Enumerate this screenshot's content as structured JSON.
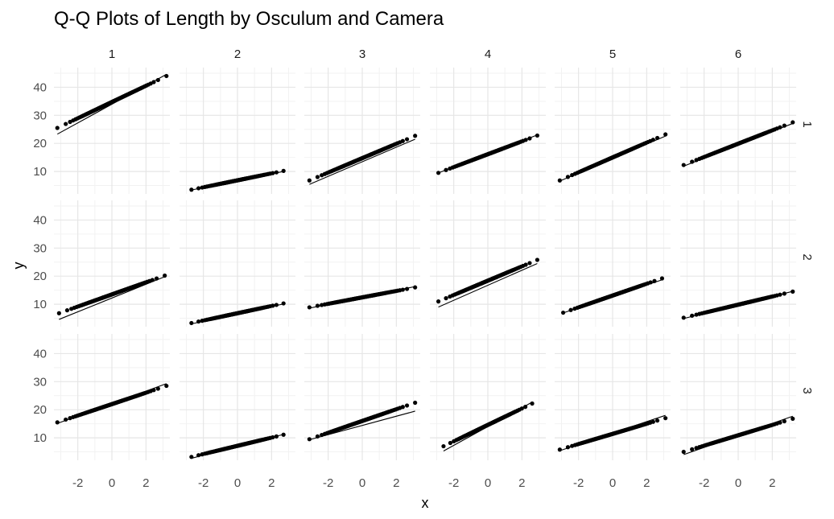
{
  "chart_data": {
    "type": "scatter",
    "title": "Q-Q Plots of Length by Osculum and Camera",
    "xlabel": "x",
    "ylabel": "y",
    "col_labels": [
      "1",
      "2",
      "3",
      "4",
      "5",
      "6"
    ],
    "row_labels": [
      "1",
      "2",
      "3"
    ],
    "x_ticks": [
      -2,
      0,
      2
    ],
    "x_tick_labels": [
      "-2",
      "0",
      "2"
    ],
    "y_ticks": [
      10,
      20,
      30,
      40
    ],
    "y_tick_labels": [
      "10",
      "20",
      "30",
      "40"
    ],
    "xlim": [
      -3.4,
      3.4
    ],
    "ylim": [
      2,
      47
    ],
    "grid": true,
    "facet_grid": true,
    "panels": [
      {
        "row": 1,
        "col": 1,
        "x_range": [
          -3.2,
          3.2
        ],
        "y_range": [
          25.5,
          44
        ],
        "line": [
          [
            -3.2,
            23.3
          ],
          [
            3.2,
            44.6
          ]
        ]
      },
      {
        "row": 1,
        "col": 2,
        "x_range": [
          -2.7,
          2.7
        ],
        "y_range": [
          3.5,
          10.2
        ],
        "line": [
          [
            -2.7,
            3.4
          ],
          [
            2.7,
            10.0
          ]
        ]
      },
      {
        "row": 1,
        "col": 3,
        "x_range": [
          -3.1,
          3.1
        ],
        "y_range": [
          6.8,
          22.7
        ],
        "line": [
          [
            -3.1,
            5.4
          ],
          [
            3.1,
            21.5
          ]
        ]
      },
      {
        "row": 1,
        "col": 4,
        "x_range": [
          -2.9,
          2.9
        ],
        "y_range": [
          9.5,
          22.8
        ],
        "line": [
          [
            -2.9,
            9.5
          ],
          [
            2.9,
            23.0
          ]
        ]
      },
      {
        "row": 1,
        "col": 5,
        "x_range": [
          -3.1,
          3.1
        ],
        "y_range": [
          6.8,
          23.2
        ],
        "line": [
          [
            -3.1,
            6.6
          ],
          [
            3.1,
            22.6
          ]
        ]
      },
      {
        "row": 1,
        "col": 6,
        "x_range": [
          -3.2,
          3.2
        ],
        "y_range": [
          12.3,
          27.5
        ],
        "line": [
          [
            -3.2,
            11.9
          ],
          [
            3.2,
            27.1
          ]
        ]
      },
      {
        "row": 2,
        "col": 1,
        "x_range": [
          -3.1,
          3.1
        ],
        "y_range": [
          6.8,
          20.2
        ],
        "line": [
          [
            -3.1,
            4.6
          ],
          [
            3.1,
            19.8
          ]
        ]
      },
      {
        "row": 2,
        "col": 2,
        "x_range": [
          -2.7,
          2.7
        ],
        "y_range": [
          3.3,
          10.3
        ],
        "line": [
          [
            -2.7,
            3.0
          ],
          [
            2.7,
            10.1
          ]
        ]
      },
      {
        "row": 2,
        "col": 3,
        "x_range": [
          -3.1,
          3.1
        ],
        "y_range": [
          8.9,
          16.0
        ],
        "line": [
          [
            -3.1,
            8.6
          ],
          [
            3.1,
            16.3
          ]
        ]
      },
      {
        "row": 2,
        "col": 4,
        "x_range": [
          -2.9,
          2.9
        ],
        "y_range": [
          11.0,
          25.8
        ],
        "line": [
          [
            -2.9,
            9.0
          ],
          [
            2.9,
            24.5
          ]
        ]
      },
      {
        "row": 2,
        "col": 5,
        "x_range": [
          -2.9,
          2.9
        ],
        "y_range": [
          7.0,
          19.2
        ],
        "line": [
          [
            -2.9,
            6.9
          ],
          [
            2.9,
            18.7
          ]
        ]
      },
      {
        "row": 2,
        "col": 6,
        "x_range": [
          -3.2,
          3.2
        ],
        "y_range": [
          5.2,
          14.5
        ],
        "line": [
          [
            -3.2,
            4.9
          ],
          [
            3.2,
            14.6
          ]
        ]
      },
      {
        "row": 3,
        "col": 1,
        "x_range": [
          -3.2,
          3.2
        ],
        "y_range": [
          15.5,
          28.5
        ],
        "line": [
          [
            -3.2,
            15.1
          ],
          [
            3.2,
            29.3
          ]
        ]
      },
      {
        "row": 3,
        "col": 2,
        "x_range": [
          -2.7,
          2.7
        ],
        "y_range": [
          3.2,
          11.1
        ],
        "line": [
          [
            -2.7,
            2.7
          ],
          [
            2.7,
            11.2
          ]
        ]
      },
      {
        "row": 3,
        "col": 3,
        "x_range": [
          -3.1,
          3.1
        ],
        "y_range": [
          9.5,
          22.5
        ],
        "line": [
          [
            -3.1,
            9.3
          ],
          [
            3.1,
            19.5
          ]
        ]
      },
      {
        "row": 3,
        "col": 4,
        "x_range": [
          -2.6,
          2.6
        ],
        "y_range": [
          7.0,
          22.2
        ],
        "line": [
          [
            -2.6,
            5.3
          ],
          [
            2.6,
            22.7
          ]
        ]
      },
      {
        "row": 3,
        "col": 5,
        "x_range": [
          -3.1,
          3.1
        ],
        "y_range": [
          5.8,
          17.0
        ],
        "line": [
          [
            -3.1,
            5.4
          ],
          [
            3.1,
            18.0
          ]
        ]
      },
      {
        "row": 3,
        "col": 6,
        "x_range": [
          -3.2,
          3.2
        ],
        "y_range": [
          5.0,
          16.8
        ],
        "line": [
          [
            -3.2,
            4.0
          ],
          [
            3.2,
            17.7
          ]
        ]
      }
    ]
  }
}
